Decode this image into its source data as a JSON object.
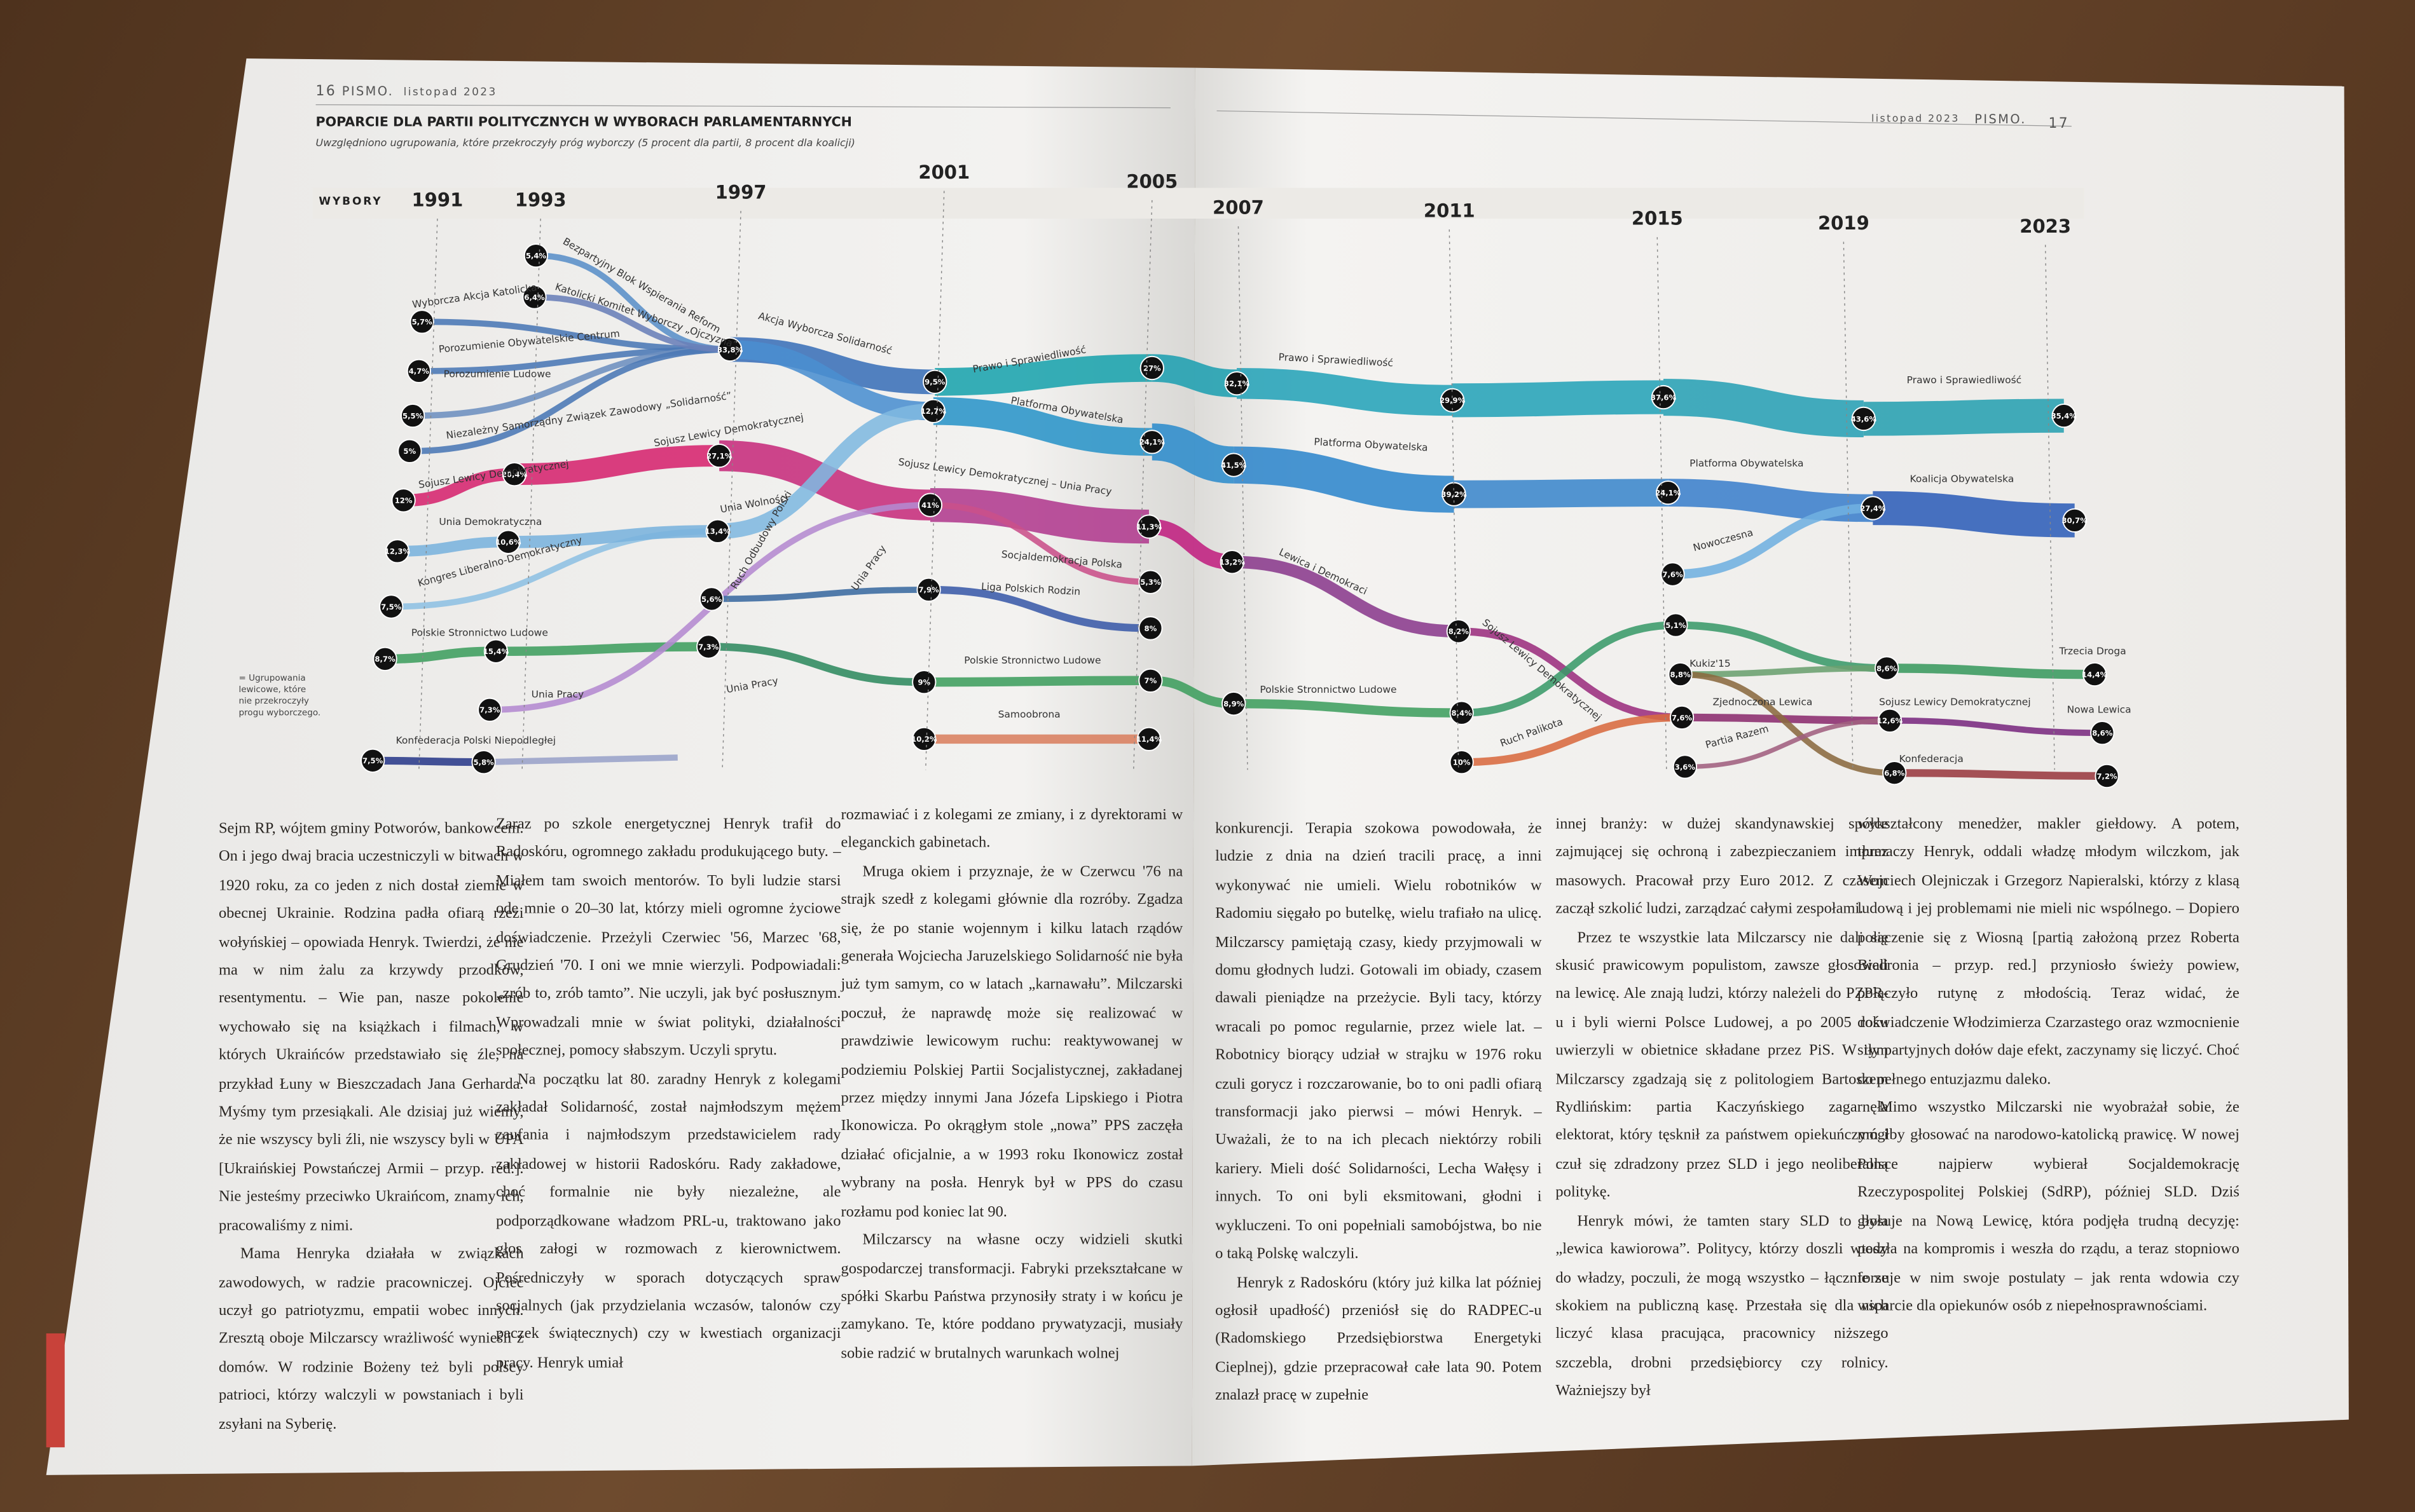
{
  "header": {
    "left_page": "16",
    "left_brand": "PISMO.",
    "left_date": "listopad 2023",
    "right_date": "listopad 2023",
    "right_brand": "PISMO.",
    "right_page": "17"
  },
  "chart": {
    "title": "POPARCIE DLA PARTII POLITYCZNYCH W WYBORACH PARLAMENTARNYCH",
    "subtitle": "Uwzględniono ugrupowania, które przekroczyły próg wyborczy (5 procent dla partii, 8 procent dla koalicji)",
    "axis_label": "WYBORY",
    "years": [
      "1991",
      "1993",
      "1997",
      "2001",
      "2005",
      "2007",
      "2011",
      "2015",
      "2019",
      "2023"
    ],
    "nodes": [
      "5,7%",
      "4,7%",
      "5,5%",
      "5%",
      "12%",
      "12,3%",
      "7,5%",
      "8,7%",
      "7,5%",
      "5,4%",
      "6,4%",
      "20,4%",
      "10,6%",
      "15,4%",
      "7,3%",
      "5,8%",
      "33,8%",
      "27,1%",
      "13,4%",
      "5,6%",
      "7,3%",
      "9,5%",
      "12,7%",
      "41%",
      "7,9%",
      "9%",
      "10,2%",
      "27%",
      "24,1%",
      "11,3%",
      "5,3%",
      "8%",
      "7%",
      "11,4%",
      "32,1%",
      "41,5%",
      "13,2%",
      "8,9%",
      "29,9%",
      "39,2%",
      "8,2%",
      "8,4%",
      "10%",
      "37,6%",
      "24,1%",
      "7,6%",
      "5,1%",
      "8,8%",
      "7,6%",
      "3,6%",
      "43,6%",
      "27,4%",
      "8,6%",
      "12,6%",
      "6,8%",
      "35,4%",
      "30,7%",
      "14,4%",
      "8,6%",
      "7,2%"
    ],
    "parties": [
      "Wyborcza Akcja Katolicka",
      "Bezpartyjny Blok Wspierania Reform",
      "Katolicki Komitet Wyborczy „Ojczyzna”",
      "Porozumienie Obywatelskie Centrum",
      "Porozumienie Ludowe",
      "Niezależny Samorządny Związek Zawodowy „Solidarność”",
      "Sojusz Lewicy Demokratycznej",
      "Sojusz Lewicy Demokratycznej",
      "Unia Demokratyczna",
      "Kongres Liberalno-Demokratyczny",
      "Polskie Stronnictwo Ludowe",
      "Unia Pracy",
      "Konfederacja Polski Niepodległej",
      "Akcja Wyborcza Solidarność",
      "Unia Wolności",
      "Ruch Odbudowy Polski",
      "Unia Pracy",
      "Unia Pracy",
      "Prawo i Sprawiedliwość",
      "Platforma Obywatelska",
      "Sojusz Lewicy Demokratycznej – Unia Pracy",
      "Socjaldemokracja Polska",
      "Liga Polskich Rodzin",
      "Polskie Stronnictwo Ludowe",
      "Samoobrona",
      "Prawo i Sprawiedliwość",
      "Platforma Obywatelska",
      "Lewica i Demokraci",
      "Polskie Stronnictwo Ludowe",
      "Sojusz Lewicy Demokratycznej",
      "Ruch Palikota",
      "Nowoczesna",
      "Kukiz'15",
      "Zjednoczona Lewica",
      "Partia Razem",
      "Prawo i Sprawiedliwość",
      "Platforma Obywatelska",
      "Koalicja Obywatelska",
      "Trzecia Droga",
      "Sojusz Lewicy Demokratycznej",
      "Nowa Lewica",
      "Konfederacja"
    ],
    "note": "= Ugrupowania lewicowe, które nie przekroczyły progu wyborczego."
  },
  "article": {
    "columns": [
      [
        "Sejm RP, wójtem gminy Potworów, bankowcem. On i jego dwaj bracia uczestniczyli w bitwach w 1920 roku, za co jeden z nich dostał ziemie w obecnej Ukrainie. Rodzina padła ofiarą rzezi wołyńskiej – opowiada Henryk. Twierdzi, że nie ma w nim żalu za krzywdy przodków, resentymentu. – Wie pan, nasze pokolenie wychowało się na książkach i filmach, w których Ukraińców przedstawiało się źle, na przykład Łuny w Bieszczadach Jana Gerharda. Myśmy tym przesiąkali. Ale dzisiaj już wiemy, że nie wszyscy byli źli, nie wszyscy byli w UPA [Ukraińskiej Powstańczej Armii – przyp. red.]. Nie jesteśmy przeciwko Ukraińcom, znamy ich, pracowaliśmy z nimi.",
        "Mama Henryka działała w związkach zawodowych, w radzie pracowniczej. Ojciec uczył go patriotyzmu, empatii wobec innych. Zresztą oboje Milczarscy wrażliwość wynieśli z domów. W rodzinie Bożeny też byli polscy patrioci, którzy walczyli w powstaniach i byli zsyłani na Syberię."
      ],
      [
        "Zaraz po szkole energetycznej Henryk trafił do Radoskóru, ogromnego zakładu produkującego buty. – Miałem tam swoich mentorów. To byli ludzie starsi ode mnie o 20–30 lat, którzy mieli ogromne życiowe doświadczenie. Przeżyli Czerwiec '56, Marzec '68, Grudzień '70. I oni we mnie wierzyli. Podpowiadali: „zrób to, zrób tamto”. Nie uczyli, jak być posłusznym. Wprowadzali mnie w świat polityki, działalności społecznej, pomocy słabszym. Uczyli sprytu.",
        "Na początku lat 80. zaradny Henryk z kolegami zakładał Solidarność, został najmłodszym mężem zaufania i najmłodszym przedstawicielem rady zakładowej w historii Radoskóru. Rady zakładowe, choć formalnie nie były niezależne, ale podporządkowane władzom PRL-u, traktowano jako głos załogi w rozmowach z kierownictwem. Pośredniczyły w sporach dotyczących spraw socjalnych (jak przydzielania wczasów, talonów czy paczek świątecznych) czy w kwestiach organizacji pracy. Henryk umiał"
      ],
      [
        "rozmawiać i z kolegami ze zmiany, i z dyrektorami w eleganckich gabinetach.",
        "Mruga okiem i przyznaje, że w Czerwcu '76 na strajk szedł z kolegami głównie dla rozróby. Zgadza się, że po stanie wojennym i kilku latach rządów generała Wojciecha Jaruzelskiego Solidarność nie była już tym samym, co w latach „karnawału”. Milczarski poczuł, że naprawdę może się realizować w prawdziwie lewicowym ruchu: reaktywowanej w podziemiu Polskiej Partii Socjalistycznej, zakładanej przez między innymi Jana Józefa Lipskiego i Piotra Ikonowicza. Po okrągłym stole „nowa” PPS zaczęła działać oficjalnie, a w 1993 roku Ikonowicz został wybrany na posła. Henryk był w PPS do czasu rozłamu pod koniec lat 90.",
        "Milczarscy na własne oczy widzieli skutki gospodarczej transformacji. Fabryki przekształcane w spółki Skarbu Państwa przynosiły straty i w końcu je zamykano. Te, które poddano prywatyzacji, musiały sobie radzić w brutalnych warunkach wolnej"
      ],
      [
        "konkurencji. Terapia szokowa powodowała, że ludzie z dnia na dzień tracili pracę, a inni wykonywać nie umieli. Wielu robotników w Radomiu sięgało po butelkę, wielu trafiało na ulicę. Milczarscy pamiętają czasy, kiedy przyjmowali w domu głodnych ludzi. Gotowali im obiady, czasem dawali pieniądze na przeżycie. Byli tacy, którzy wracali po pomoc regularnie, przez wiele lat. – Robotnicy biorący udział w strajku w 1976 roku czuli gorycz i rozczarowanie, bo to oni padli ofiarą transformacji jako pierwsi – mówi Henryk. – Uważali, że to na ich plecach niektórzy robili kariery. Mieli dość Solidarności, Lecha Wałęsy i innych. To oni byli eksmitowani, głodni i wykluczeni. To oni popełniali samobójstwa, bo nie o taką Polskę walczyli.",
        "Henryk z Radoskóru (który już kilka lat później ogłosił upadłość) przeniósł się do RADPEC-u (Radomskiego Przedsiębiorstwa Energetyki Cieplnej), gdzie przepracował całe lata 90. Potem znalazł pracę w zupełnie"
      ],
      [
        "innej branży: w dużej skandynawskiej spółce zajmującej się ochroną i zabezpieczaniem imprez masowych. Pracował przy Euro 2012. Z czasem zaczął szkolić ludzi, zarządzać całymi zespołami.",
        "Przez te wszystkie lata Milczarscy nie dali się skusić prawicowym populistom, zawsze głosowali na lewicę. Ale znają ludzi, którzy należeli do PZPR-u i byli wierni Polsce Ludowej, a po 2005 roku uwierzyli w obietnice składane przez PiS. W tym Milczarscy zgadzają się z politologiem Bartoszem Rydlińskim: partia Kaczyńskiego zagarnęła elektorat, który tęsknił za państwem opiekuńczym i czuł się zdradzony przez SLD i jego neoliberalną politykę.",
        "Henryk mówi, że tamten stary SLD to była „lewica kawiorowa”. Politycy, którzy doszli wtedy do władzy, poczuli, że mogą wszystko – łącznie ze skokiem na publiczną kasę. Przestała się dla nich liczyć klasa pracująca, pracownicy niższego szczebla, drobni przedsiębiorcy czy rolnicy. Ważniejszy był"
      ],
      [
        "wykształcony menedżer, makler giełdowy. A potem, tłumaczy Henryk, oddali władzę młodym wilczkom, jak Wojciech Olejniczak i Grzegorz Napieralski, którzy z klasą ludową i jej problemami nie mieli nic wspólnego. – Dopiero połączenie się z Wiosną [partią założoną przez Roberta Biedronia – przyp. red.] przyniosło świeży powiew, połączyło rutynę z młodością. Teraz widać, że doświadczenie Włodzimierza Czarzastego oraz wzmocnienie siły partyjnych dołów daje efekt, zaczynamy się liczyć. Choć do pełnego entuzjazmu daleko.",
        "Mimo wszystko Milczarski nie wyobrażał sobie, że mógłby głosować na narodowo-katolicką prawicę. W nowej Polsce najpierw wybierał Socjaldemokrację Rzeczypospolitej Polskiej (SdRP), później SLD. Dziś głosuje na Nową Lewicę, która podjęła trudną decyzję: poszła na kompromis i weszła do rządu, a teraz stopniowo forsuje w nim swoje postulaty – jak renta wdowia czy wsparcie dla opiekunów osób z niepełnosprawnościami."
      ]
    ]
  }
}
